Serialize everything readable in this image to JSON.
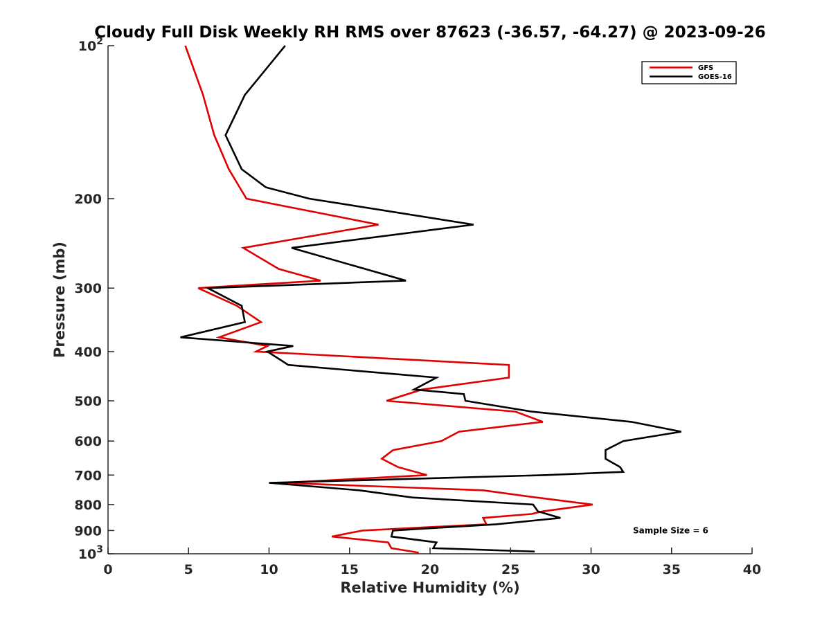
{
  "chart_data": {
    "type": "line",
    "title": "Cloudy Full Disk Weekly RH RMS over 87623 (-36.57, -64.27) @ 2023-09-26",
    "xlabel": "Relative Humidity (%)",
    "ylabel": "Pressure (mb)",
    "xlim": [
      0,
      40
    ],
    "ylim": [
      100,
      1000
    ],
    "yscale": "log",
    "y_reversed": true,
    "grid": false,
    "legend_position": "top-right",
    "x_ticks": [
      0,
      5,
      10,
      15,
      20,
      25,
      30,
      35,
      40
    ],
    "y_ticks": [
      {
        "value": 100,
        "base": "10",
        "exp": "2"
      },
      {
        "value": 200,
        "label": "200"
      },
      {
        "value": 300,
        "label": "300"
      },
      {
        "value": 400,
        "label": "400"
      },
      {
        "value": 500,
        "label": "500"
      },
      {
        "value": 600,
        "label": "600"
      },
      {
        "value": 700,
        "label": "700"
      },
      {
        "value": 800,
        "label": "800"
      },
      {
        "value": 900,
        "label": "900"
      },
      {
        "value": 1000,
        "base": "10",
        "exp": "3"
      }
    ],
    "series": [
      {
        "name": "GFS",
        "color": "#e00000",
        "points": [
          [
            4.8,
            100
          ],
          [
            5.9,
            125
          ],
          [
            6.6,
            150
          ],
          [
            7.5,
            175
          ],
          [
            8.6,
            200
          ],
          [
            16.8,
            225
          ],
          [
            8.4,
            250
          ],
          [
            10.6,
            275
          ],
          [
            13.2,
            290
          ],
          [
            5.6,
            300
          ],
          [
            8.0,
            325
          ],
          [
            9.5,
            350
          ],
          [
            6.9,
            375
          ],
          [
            9.9,
            390
          ],
          [
            9.2,
            400
          ],
          [
            24.9,
            425
          ],
          [
            24.9,
            450
          ],
          [
            19.5,
            475
          ],
          [
            17.3,
            500
          ],
          [
            25.3,
            525
          ],
          [
            27.0,
            550
          ],
          [
            21.8,
            575
          ],
          [
            20.7,
            600
          ],
          [
            17.7,
            625
          ],
          [
            17.0,
            650
          ],
          [
            18.0,
            675
          ],
          [
            19.8,
            700
          ],
          [
            10.8,
            725
          ],
          [
            23.3,
            750
          ],
          [
            26.6,
            775
          ],
          [
            30.1,
            800
          ],
          [
            27.0,
            825
          ],
          [
            26.3,
            835
          ],
          [
            23.3,
            850
          ],
          [
            23.5,
            875
          ],
          [
            15.8,
            900
          ],
          [
            13.9,
            925
          ],
          [
            17.4,
            950
          ],
          [
            17.6,
            975
          ],
          [
            19.3,
            995
          ]
        ]
      },
      {
        "name": "GOES-16",
        "color": "#000000",
        "points": [
          [
            11.0,
            100
          ],
          [
            8.5,
            125
          ],
          [
            7.3,
            150
          ],
          [
            8.3,
            175
          ],
          [
            9.8,
            190
          ],
          [
            12.5,
            200
          ],
          [
            22.7,
            225
          ],
          [
            11.4,
            250
          ],
          [
            18.5,
            290
          ],
          [
            6.2,
            300
          ],
          [
            8.3,
            325
          ],
          [
            8.5,
            350
          ],
          [
            4.5,
            375
          ],
          [
            11.5,
            390
          ],
          [
            9.9,
            400
          ],
          [
            11.2,
            425
          ],
          [
            20.4,
            450
          ],
          [
            19.0,
            475
          ],
          [
            22.1,
            485
          ],
          [
            22.2,
            500
          ],
          [
            26.3,
            525
          ],
          [
            32.5,
            550
          ],
          [
            35.6,
            575
          ],
          [
            32.0,
            600
          ],
          [
            30.9,
            625
          ],
          [
            30.9,
            650
          ],
          [
            31.8,
            675
          ],
          [
            32.0,
            690
          ],
          [
            27.2,
            700
          ],
          [
            10.0,
            725
          ],
          [
            15.6,
            750
          ],
          [
            18.9,
            775
          ],
          [
            26.4,
            800
          ],
          [
            26.7,
            825
          ],
          [
            28.1,
            850
          ],
          [
            24.1,
            875
          ],
          [
            17.7,
            900
          ],
          [
            17.6,
            925
          ],
          [
            20.4,
            950
          ],
          [
            20.2,
            975
          ],
          [
            26.5,
            990
          ]
        ]
      }
    ],
    "annotations": [
      {
        "text": "Sample Size = 6",
        "x": 32.6,
        "y": 900
      }
    ]
  }
}
